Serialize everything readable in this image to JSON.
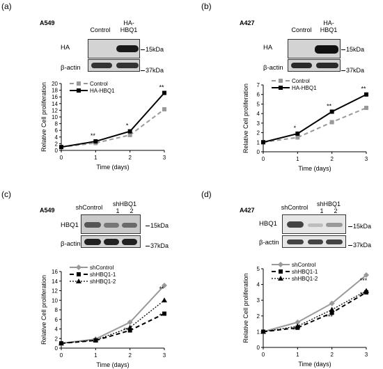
{
  "panels": [
    {
      "label": "(a)",
      "cell_line": "A549",
      "lanes": [
        "Control",
        "HA-\nHBQ1"
      ],
      "blots": [
        {
          "name": "HA",
          "marker": "15kDa"
        },
        {
          "name": "β-actin",
          "marker": "37kDa"
        }
      ]
    },
    {
      "label": "(b)",
      "cell_line": "A427",
      "lanes": [
        "Control",
        "HA-\nHBQ1"
      ],
      "blots": [
        {
          "name": "HA",
          "marker": "15kDa"
        },
        {
          "name": "β-actin",
          "marker": "37kDa"
        }
      ]
    },
    {
      "label": "(c)",
      "cell_line": "A549",
      "lanes": [
        "shHBQ1\n1      2"
      ],
      "lanes_pre": "shControl",
      "blots": [
        {
          "name": "HBQ1",
          "marker": "15kDa"
        },
        {
          "name": "β-actin",
          "marker": "37kDa"
        }
      ]
    },
    {
      "label": "(d)",
      "cell_line": "A427",
      "lanes": [
        "shHBQ1\n1      2"
      ],
      "lanes_pre": "shControl",
      "blots": [
        {
          "name": "HBQ1",
          "marker": "15kDa"
        },
        {
          "name": "β-actin",
          "marker": "37kDa"
        }
      ]
    }
  ],
  "chart_data": [
    {
      "type": "line",
      "xlabel": "Time (days)",
      "ylabel": "Relative Cell proliferation",
      "x": [
        0,
        1,
        2,
        3
      ],
      "ylim": [
        0,
        20
      ],
      "yticks": [
        0,
        2,
        4,
        6,
        8,
        10,
        12,
        14,
        16,
        18,
        20
      ],
      "legend": "top-left",
      "series": [
        {
          "name": "Control",
          "values": [
            1,
            2.2,
            4.6,
            12.3
          ],
          "color": "#999999",
          "dash": "dashed",
          "marker": "square"
        },
        {
          "name": "HA-HBQ1",
          "values": [
            1,
            2.7,
            5.7,
            17.2
          ],
          "color": "#000000",
          "dash": "solid",
          "marker": "square"
        }
      ],
      "annotations": [
        {
          "x": 1,
          "y": 2.7,
          "text": "**"
        },
        {
          "x": 2,
          "y": 5.7,
          "text": "*"
        },
        {
          "x": 3,
          "y": 17.2,
          "text": "**"
        }
      ]
    },
    {
      "type": "line",
      "xlabel": "Time (days)",
      "ylabel": "Relative Cell proliferation",
      "x": [
        0,
        1,
        2,
        3
      ],
      "ylim": [
        0,
        7
      ],
      "yticks": [
        0,
        1,
        2,
        3,
        4,
        5,
        6,
        7
      ],
      "legend": "top-left",
      "series": [
        {
          "name": "Control",
          "values": [
            1,
            1.5,
            3.1,
            4.6
          ],
          "color": "#999999",
          "dash": "dashed",
          "marker": "square"
        },
        {
          "name": "HA-HBQ1",
          "values": [
            1,
            1.9,
            4.2,
            6.0
          ],
          "color": "#000000",
          "dash": "solid",
          "marker": "square"
        }
      ],
      "annotations": [
        {
          "x": 1,
          "y": 1.9,
          "text": "*"
        },
        {
          "x": 2,
          "y": 4.2,
          "text": "**"
        },
        {
          "x": 3,
          "y": 6.0,
          "text": "**"
        }
      ]
    },
    {
      "type": "line",
      "xlabel": "Time (days)",
      "ylabel": "Relative Cell proliferation",
      "x": [
        0,
        1,
        2,
        3
      ],
      "ylim": [
        0,
        16
      ],
      "yticks": [
        0,
        2,
        4,
        6,
        8,
        10,
        12,
        14,
        16
      ],
      "legend": "top-left",
      "series": [
        {
          "name": "shControl",
          "values": [
            1,
            1.9,
            5.4,
            13.1
          ],
          "color": "#999999",
          "dash": "solid",
          "marker": "diamond"
        },
        {
          "name": "shHBQ1-1",
          "values": [
            1,
            1.6,
            3.7,
            7.2
          ],
          "color": "#000000",
          "dash": "dashed",
          "marker": "square"
        },
        {
          "name": "shHBQ1-2",
          "values": [
            1,
            1.7,
            4.3,
            10.0
          ],
          "color": "#000000",
          "dash": "dotted",
          "marker": "triangle"
        }
      ],
      "annotations": [
        {
          "x": 2,
          "y": 2.6,
          "text": "***"
        },
        {
          "x": 3,
          "y": 11.2,
          "text": "**"
        },
        {
          "x": 3,
          "y": 5.6,
          "text": "**"
        }
      ]
    },
    {
      "type": "line",
      "xlabel": "Time (days)",
      "ylabel": "Relative Cell proliferation",
      "x": [
        0,
        1,
        2,
        3
      ],
      "ylim": [
        0,
        5
      ],
      "yticks": [
        0,
        1,
        2,
        3,
        4,
        5
      ],
      "legend": "top-left",
      "series": [
        {
          "name": "shControl",
          "values": [
            1,
            1.6,
            2.8,
            4.6
          ],
          "color": "#999999",
          "dash": "solid",
          "marker": "diamond"
        },
        {
          "name": "shHBQ1-1",
          "values": [
            1,
            1.25,
            2.2,
            3.5
          ],
          "color": "#000000",
          "dash": "dashed",
          "marker": "square"
        },
        {
          "name": "shHBQ1-2",
          "values": [
            1,
            1.35,
            2.4,
            3.6
          ],
          "color": "#000000",
          "dash": "dotted",
          "marker": "triangle"
        }
      ],
      "annotations": [
        {
          "x": 1,
          "y": 0.75,
          "text": "**"
        },
        {
          "x": 2,
          "y": 1.6,
          "text": "***"
        },
        {
          "x": 3,
          "y": 3.9,
          "text": "***"
        },
        {
          "x": 3,
          "y": 3.0,
          "text": "***"
        }
      ]
    }
  ]
}
